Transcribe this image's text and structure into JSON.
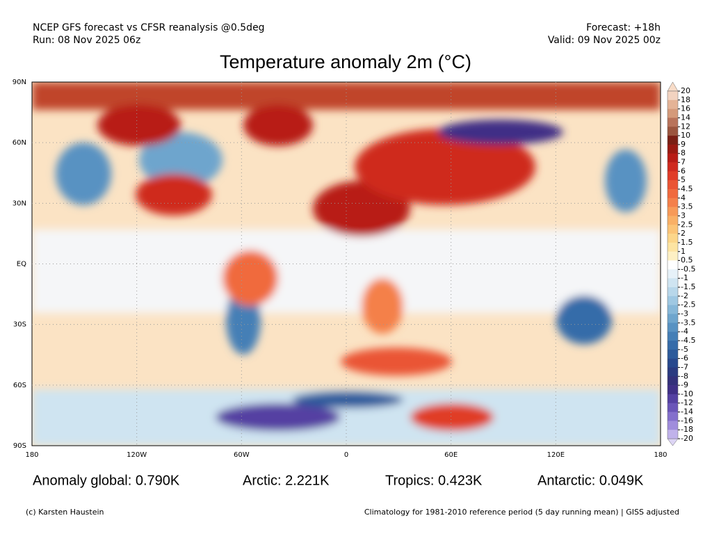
{
  "header": {
    "left": [
      "NCEP GFS forecast vs CFSR reanalysis @0.5deg",
      "Run: 08 Nov 2025 06z"
    ],
    "right": [
      "Forecast: +18h",
      "Valid: 09 Nov 2025 00z"
    ],
    "title": "Temperature anomaly 2m (°C)"
  },
  "map": {
    "lat_labels": [
      "90N",
      "60N",
      "30N",
      "EQ",
      "30S",
      "60S",
      "90S"
    ],
    "lon_labels": [
      "180",
      "120W",
      "60W",
      "0",
      "60E",
      "120E",
      "180"
    ]
  },
  "colorbar": {
    "ticks": [
      20,
      18,
      16,
      14,
      12,
      10,
      9,
      8,
      7,
      6,
      5,
      4.5,
      4,
      3.5,
      3,
      2.5,
      2,
      1.5,
      1,
      0.5,
      -0.5,
      -1,
      -1.5,
      -2,
      -2.5,
      -3,
      -3.5,
      -4,
      -4.5,
      -5,
      -6,
      -7,
      -8,
      -9,
      -10,
      -12,
      -14,
      -16,
      -18,
      -20
    ],
    "colors": [
      "#f2d3c0",
      "#e4b396",
      "#d49a7a",
      "#b8735a",
      "#9b553e",
      "#7a1f14",
      "#9a1a12",
      "#b81c16",
      "#cf2a1f",
      "#e03c28",
      "#ea5434",
      "#f06a3e",
      "#f4804a",
      "#f79a58",
      "#f9b066",
      "#fbc477",
      "#fcd68a",
      "#fde4a2",
      "#fef0c4",
      "#ffffff",
      "#e6f1f8",
      "#cfe4f1",
      "#b8d7ea",
      "#9fc8e2",
      "#86b7d8",
      "#6ea5cd",
      "#5892c2",
      "#457fb6",
      "#366ca9",
      "#2c5a9b",
      "#27488d",
      "#2a3a80",
      "#33307a",
      "#3f2f86",
      "#5440a2",
      "#6a55b8",
      "#8470cc",
      "#a08ddc",
      "#c0b2ea"
    ],
    "over_color": "#f8dcc8",
    "under_color": "#ddd5f5"
  },
  "stats": [
    "Anomaly global: 0.790K",
    "Arctic: 2.221K",
    "Tropics: 0.423K",
    "Antarctic: 0.049K"
  ],
  "footer": {
    "left": "(c) Karsten Haustein",
    "right": "Climatology for 1981-2010 reference period (5 day running mean) | GISS adjusted"
  }
}
